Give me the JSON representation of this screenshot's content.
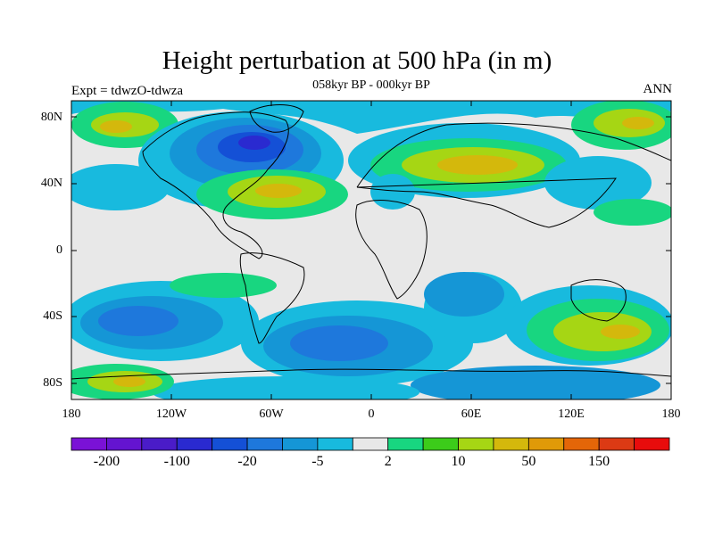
{
  "title": "Height perturbation at 500 hPa (in m)",
  "subtitle": "058kyr BP - 000kyr BP",
  "experiment": "Expt = tdwzO-tdwza",
  "season": "ANN",
  "lat_labels": [
    "80N",
    "40N",
    "0",
    "40S",
    "80S"
  ],
  "lon_labels": [
    "180",
    "120W",
    "60W",
    "0",
    "60E",
    "120E",
    "180"
  ],
  "colorbar": {
    "colors": [
      "#7a12d6",
      "#6414d0",
      "#4a1cc8",
      "#2a2ad0",
      "#1450d6",
      "#1e78dc",
      "#1596d6",
      "#18bade",
      "#e8e8e8",
      "#18d680",
      "#3ccc1a",
      "#a6d614",
      "#d4b80c",
      "#e09a08",
      "#e46608",
      "#dc3a14",
      "#e80c0c"
    ],
    "tick_labels": [
      "-200",
      "-100",
      "-20",
      "-5",
      "2",
      "10",
      "50",
      "150"
    ]
  }
}
